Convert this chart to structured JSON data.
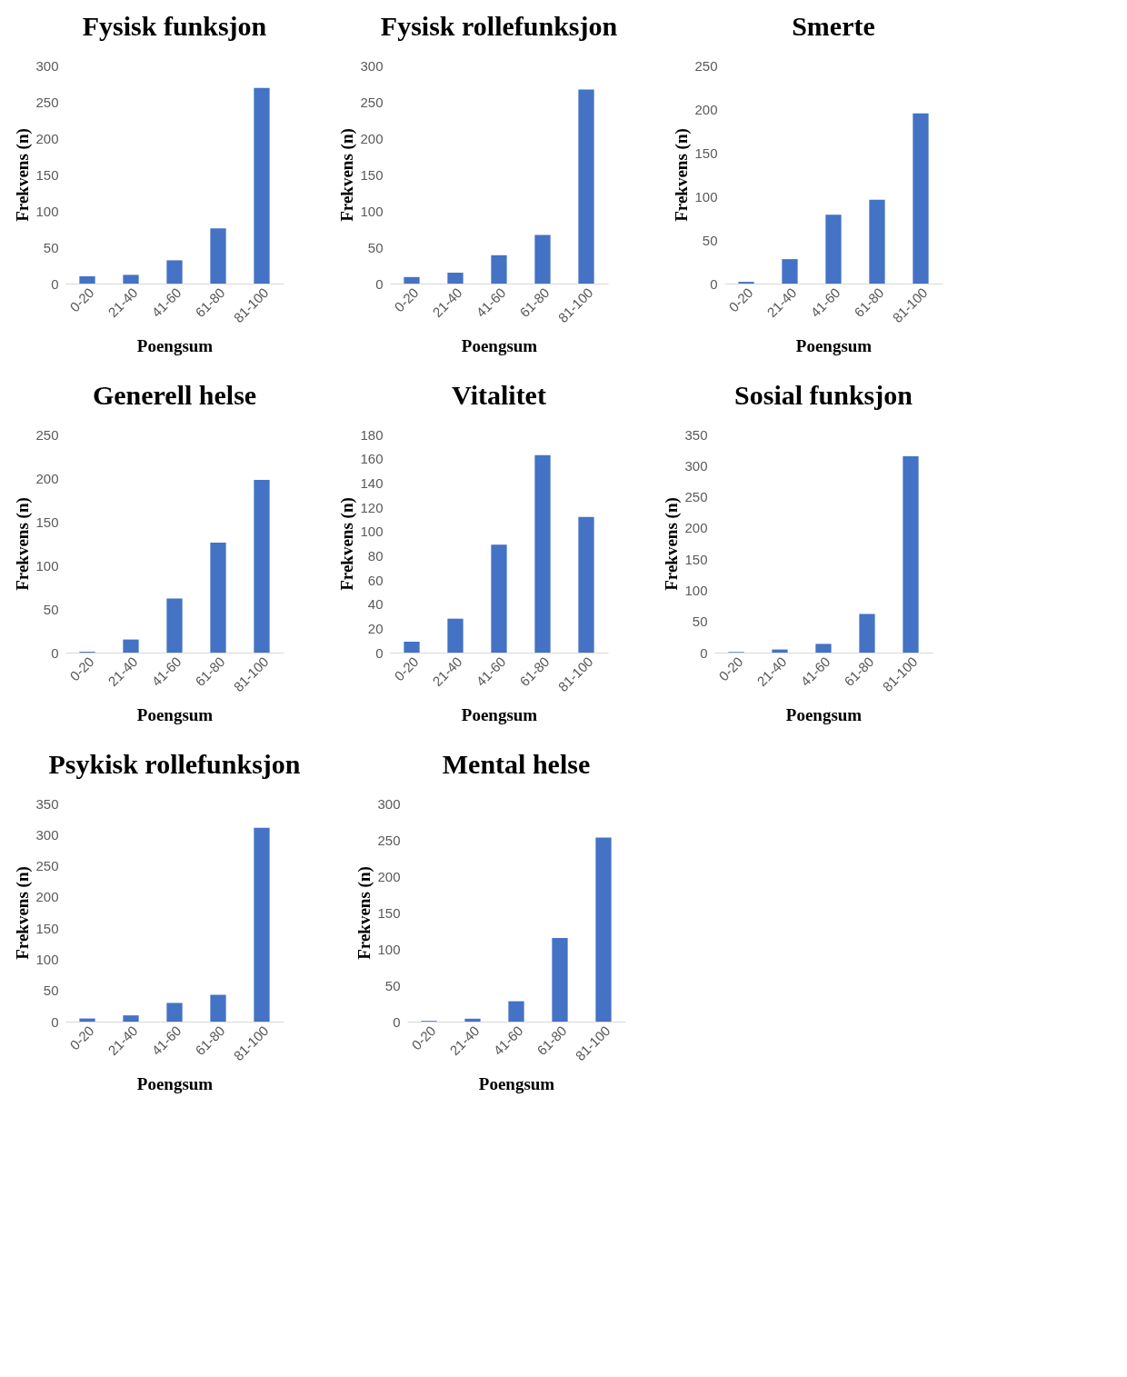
{
  "chart_data": [
    {
      "type": "bar",
      "title": "Fysisk funksjon",
      "xlabel": "Poengsum",
      "ylabel": "Frekvens (n)",
      "categories": [
        "0-20",
        "21-40",
        "41-60",
        "61-80",
        "81-100"
      ],
      "values": [
        10,
        12,
        32,
        76,
        269
      ],
      "color": "#4472c4",
      "ylim": [
        0,
        300
      ],
      "yticks": [
        0,
        50,
        100,
        150,
        200,
        250,
        300
      ]
    },
    {
      "type": "bar",
      "title": "Fysisk rollefunksjon",
      "xlabel": "Poengsum",
      "ylabel": "Frekvens (n)",
      "categories": [
        "0-20",
        "21-40",
        "41-60",
        "61-80",
        "81-100"
      ],
      "values": [
        9,
        15,
        39,
        67,
        267
      ],
      "color": "#4472c4",
      "ylim": [
        0,
        300
      ],
      "yticks": [
        0,
        50,
        100,
        150,
        200,
        250,
        300
      ]
    },
    {
      "type": "bar",
      "title": "Smerte",
      "xlabel": "Poengsum",
      "ylabel": "Frekvens (n)",
      "categories": [
        "0-20",
        "21-40",
        "41-60",
        "61-80",
        "81-100"
      ],
      "values": [
        2,
        28,
        79,
        96,
        195
      ],
      "color": "#4472c4",
      "ylim": [
        0,
        250
      ],
      "yticks": [
        0,
        50,
        100,
        150,
        200,
        250
      ]
    },
    {
      "type": "bar",
      "title": "Generell helse",
      "xlabel": "Poengsum",
      "ylabel": "Frekvens (n)",
      "categories": [
        "0-20",
        "21-40",
        "41-60",
        "61-80",
        "81-100"
      ],
      "values": [
        1,
        15,
        62,
        126,
        198
      ],
      "color": "#4472c4",
      "ylim": [
        0,
        250
      ],
      "yticks": [
        0,
        50,
        100,
        150,
        200,
        250
      ]
    },
    {
      "type": "bar",
      "title": "Vitalitet",
      "xlabel": "Poengsum",
      "ylabel": "Frekvens (n)",
      "categories": [
        "0-20",
        "21-40",
        "41-60",
        "61-80",
        "81-100"
      ],
      "values": [
        9,
        28,
        89,
        163,
        112
      ],
      "color": "#4472c4",
      "ylim": [
        0,
        180
      ],
      "yticks": [
        0,
        20,
        40,
        60,
        80,
        100,
        120,
        140,
        160,
        180
      ]
    },
    {
      "type": "bar",
      "title": "Sosial funksjon",
      "xlabel": "Poengsum",
      "ylabel": "Frekvens (n)",
      "categories": [
        "0-20",
        "21-40",
        "41-60",
        "61-80",
        "81-100"
      ],
      "values": [
        1,
        5,
        14,
        62,
        315
      ],
      "color": "#4472c4",
      "ylim": [
        0,
        350
      ],
      "yticks": [
        0,
        50,
        100,
        150,
        200,
        250,
        300,
        350
      ]
    },
    {
      "type": "bar",
      "title": "Psykisk rollefunksjon",
      "xlabel": "Poengsum",
      "ylabel": "Frekvens (n)",
      "categories": [
        "0-20",
        "21-40",
        "41-60",
        "61-80",
        "81-100"
      ],
      "values": [
        5,
        10,
        30,
        43,
        311
      ],
      "color": "#4472c4",
      "ylim": [
        0,
        350
      ],
      "yticks": [
        0,
        50,
        100,
        150,
        200,
        250,
        300,
        350
      ]
    },
    {
      "type": "bar",
      "title": "Mental helse",
      "xlabel": "Poengsum",
      "ylabel": "Frekvens (n)",
      "categories": [
        "0-20",
        "21-40",
        "41-60",
        "61-80",
        "81-100"
      ],
      "values": [
        1,
        4,
        28,
        115,
        253
      ],
      "color": "#4472c4",
      "ylim": [
        0,
        300
      ],
      "yticks": [
        0,
        50,
        100,
        150,
        200,
        250,
        300
      ]
    }
  ]
}
